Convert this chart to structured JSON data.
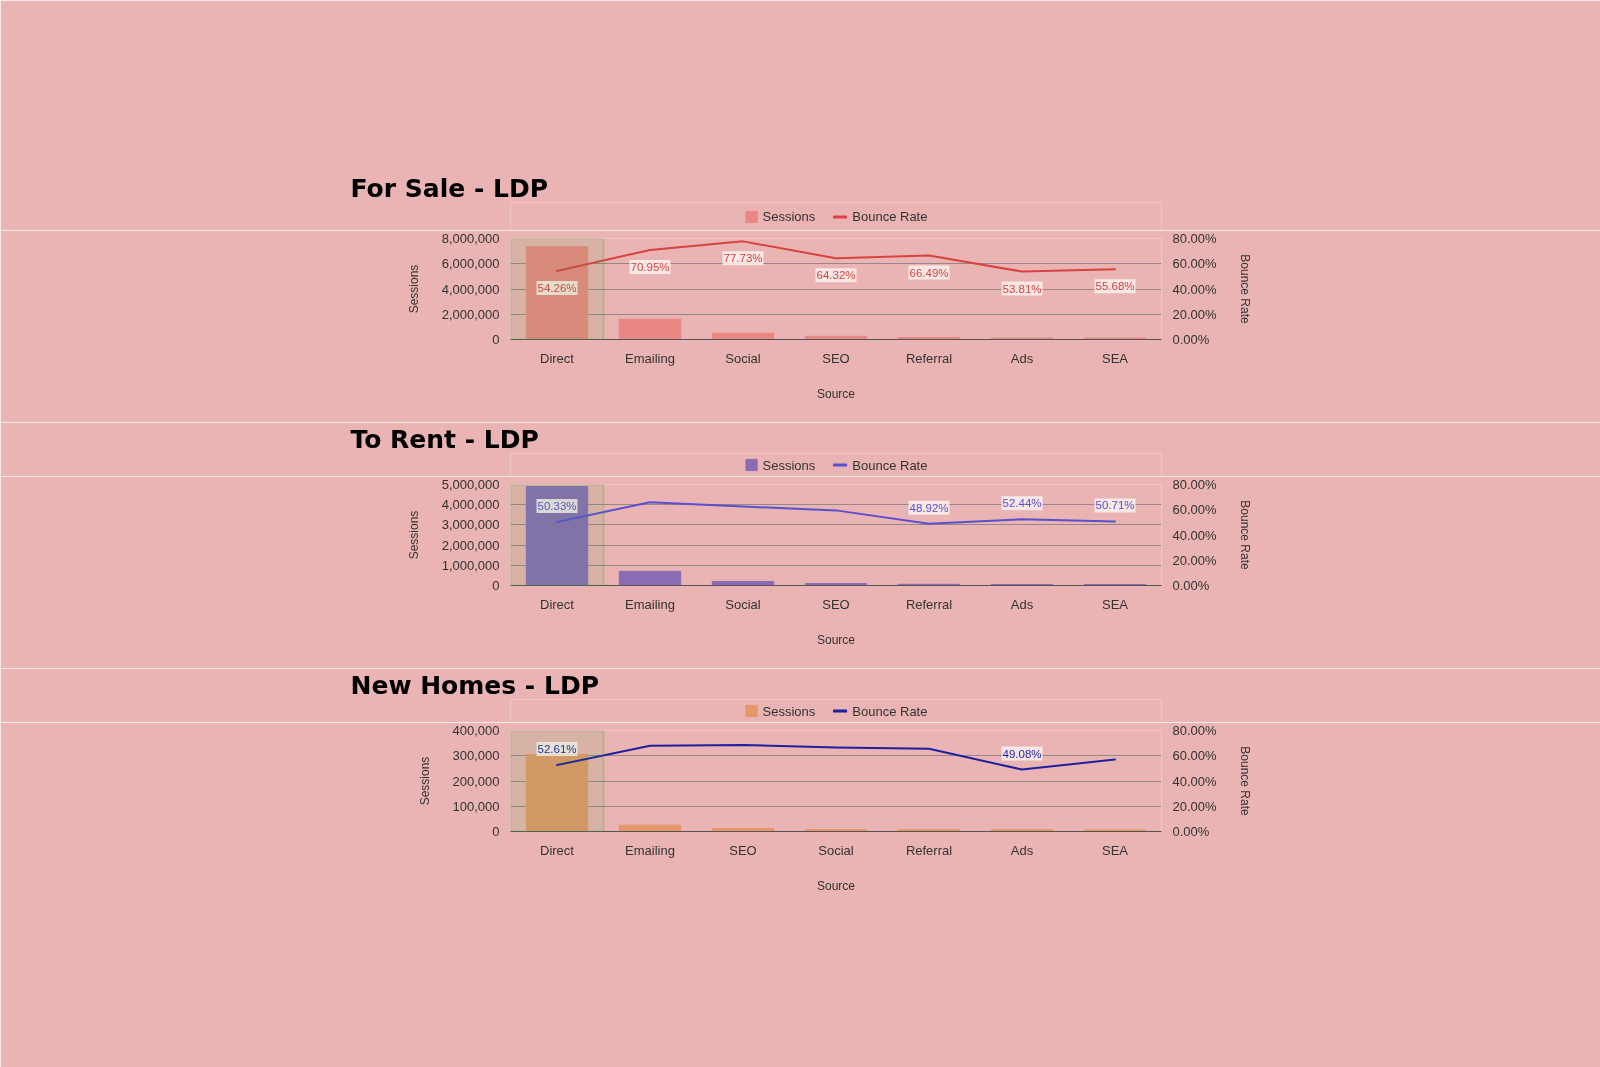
{
  "chart_data": [
    {
      "type": "bar",
      "title": "For Sale - LDP",
      "xlabel": "Source",
      "ylabel": "Sessions",
      "y2label": "Bounce Rate",
      "categories": [
        "Direct",
        "Emailing",
        "Social",
        "SEO",
        "Referral",
        "Ads",
        "SEA"
      ],
      "series": [
        {
          "name": "Sessions",
          "color": "#ea8683",
          "values": [
            7350000,
            1600000,
            500000,
            250000,
            150000,
            120000,
            120000
          ]
        },
        {
          "name": "Bounce Rate",
          "type": "line",
          "axis": "y2",
          "color": "#d8433f",
          "values": [
            54.26,
            70.95,
            77.73,
            64.32,
            66.49,
            53.81,
            55.68
          ],
          "value_labels": [
            "54.26%",
            "70.95%",
            "77.73%",
            "64.32%",
            "66.49%",
            "53.81%",
            "55.68%"
          ]
        }
      ],
      "ylim": [
        0,
        8000000
      ],
      "yticks": [
        {
          "value": 0,
          "label": "0"
        },
        {
          "value": 2000000,
          "label": "2,000,000"
        },
        {
          "value": 4000000,
          "label": "4,000,000"
        },
        {
          "value": 6000000,
          "label": "6,000,000"
        },
        {
          "value": 8000000,
          "label": "8,000,000"
        }
      ],
      "y2lim": [
        0,
        80
      ],
      "y2ticks": [
        {
          "value": 0,
          "label": "0.00%"
        },
        {
          "value": 20,
          "label": "20.00%"
        },
        {
          "value": 40,
          "label": "40.00%"
        },
        {
          "value": 60,
          "label": "60.00%"
        },
        {
          "value": 80,
          "label": "80.00%"
        }
      ],
      "bands": [
        {
          "axis": "x",
          "from": "Direct",
          "to": "Direct",
          "color": "#3fae3a"
        }
      ],
      "grid": "y",
      "legend": "top"
    },
    {
      "type": "bar",
      "title": "To Rent - LDP",
      "xlabel": "Source",
      "ylabel": "Sessions",
      "y2label": "Bounce Rate",
      "categories": [
        "Direct",
        "Emailing",
        "Social",
        "SEO",
        "Referral",
        "Ads",
        "SEA"
      ],
      "series": [
        {
          "name": "Sessions",
          "color": "#8a6cb4",
          "values": [
            4900000,
            700000,
            200000,
            100000,
            60000,
            50000,
            50000
          ]
        },
        {
          "name": "Bounce Rate",
          "type": "line",
          "axis": "y2",
          "color": "#5b4fcf",
          "values": [
            50.33,
            66,
            62.5,
            59.5,
            48.92,
            52.44,
            50.71
          ],
          "value_labels": [
            "50.33%",
            null,
            null,
            null,
            "48.92%",
            "52.44%",
            "50.71%"
          ]
        }
      ],
      "ylim": [
        0,
        5000000
      ],
      "yticks": [
        {
          "value": 0,
          "label": "0"
        },
        {
          "value": 1000000,
          "label": "1,000,000"
        },
        {
          "value": 2000000,
          "label": "2,000,000"
        },
        {
          "value": 3000000,
          "label": "3,000,000"
        },
        {
          "value": 4000000,
          "label": "4,000,000"
        },
        {
          "value": 5000000,
          "label": "5,000,000"
        }
      ],
      "y2lim": [
        0,
        80
      ],
      "y2ticks": [
        {
          "value": 0,
          "label": "0.00%"
        },
        {
          "value": 20,
          "label": "20.00%"
        },
        {
          "value": 40,
          "label": "40.00%"
        },
        {
          "value": 60,
          "label": "60.00%"
        },
        {
          "value": 80,
          "label": "80.00%"
        }
      ],
      "bands": [
        {
          "axis": "x",
          "from": "Direct",
          "to": "Direct",
          "color": "#3fae3a"
        }
      ],
      "grid": "y",
      "legend": "top"
    },
    {
      "type": "bar",
      "title": "New Homes - LDP",
      "xlabel": "Source",
      "ylabel": "Sessions",
      "y2label": "Bounce Rate",
      "categories": [
        "Direct",
        "Emailing",
        "SEO",
        "Social",
        "Referral",
        "Ads",
        "SEA"
      ],
      "series": [
        {
          "name": "Sessions",
          "color": "#e3976a",
          "values": [
            305000,
            25000,
            12000,
            8000,
            7000,
            7000,
            6000
          ]
        },
        {
          "name": "Bounce Rate",
          "type": "line",
          "axis": "y2",
          "color": "#1f1fa0",
          "values": [
            52.61,
            68,
            68.5,
            66.5,
            65.5,
            49.08,
            57
          ],
          "value_labels": [
            "52.61%",
            null,
            null,
            null,
            null,
            "49.08%",
            null
          ]
        }
      ],
      "ylim": [
        0,
        400000
      ],
      "yticks": [
        {
          "value": 0,
          "label": "0"
        },
        {
          "value": 100000,
          "label": "100,000"
        },
        {
          "value": 200000,
          "label": "200,000"
        },
        {
          "value": 300000,
          "label": "300,000"
        },
        {
          "value": 400000,
          "label": "400,000"
        }
      ],
      "y2lim": [
        0,
        80
      ],
      "y2ticks": [
        {
          "value": 0,
          "label": "0.00%"
        },
        {
          "value": 20,
          "label": "20.00%"
        },
        {
          "value": 40,
          "label": "40.00%"
        },
        {
          "value": 60,
          "label": "60.00%"
        },
        {
          "value": 80,
          "label": "80.00%"
        }
      ],
      "bands": [
        {
          "axis": "x",
          "from": "Direct",
          "to": "Direct",
          "color": "#3fae3a"
        }
      ],
      "grid": "y",
      "legend": "top"
    }
  ]
}
